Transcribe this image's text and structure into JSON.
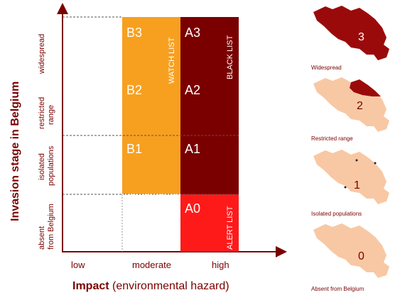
{
  "y_axis_title": "Invasion stage in Belgium",
  "x_axis_title_bold": "Impact",
  "x_axis_title_rest": " (environmental hazard)",
  "rows": [
    {
      "line1": "widespread",
      "line2": ""
    },
    {
      "line1": "restricted",
      "line2": "range"
    },
    {
      "line1": "isolated",
      "line2": "populations"
    },
    {
      "line1": "absent",
      "line2": "from Belgium"
    }
  ],
  "columns": [
    "low",
    "moderate",
    "high"
  ],
  "cells": {
    "B3": "B3",
    "B2": "B2",
    "B1": "B1",
    "A3": "A3",
    "A2": "A2",
    "A1": "A1",
    "A0": "A0"
  },
  "lists": {
    "watch": "WATCH LIST",
    "black": "BLACK LIST",
    "alert": "ALERT LIST"
  },
  "colors": {
    "watch": "#f7a020",
    "black": "#7a0000",
    "alert": "#ff1a1a",
    "map_dark": "#9b0a0a",
    "map_light": "#f8c8a4",
    "axis": "#7a0000"
  },
  "maps": [
    {
      "number": "3",
      "caption": "Widespread"
    },
    {
      "number": "2",
      "caption": "Restricted range"
    },
    {
      "number": "1",
      "caption": "Isolated populations"
    },
    {
      "number": "0",
      "caption": "Absent from Belgium"
    }
  ]
}
